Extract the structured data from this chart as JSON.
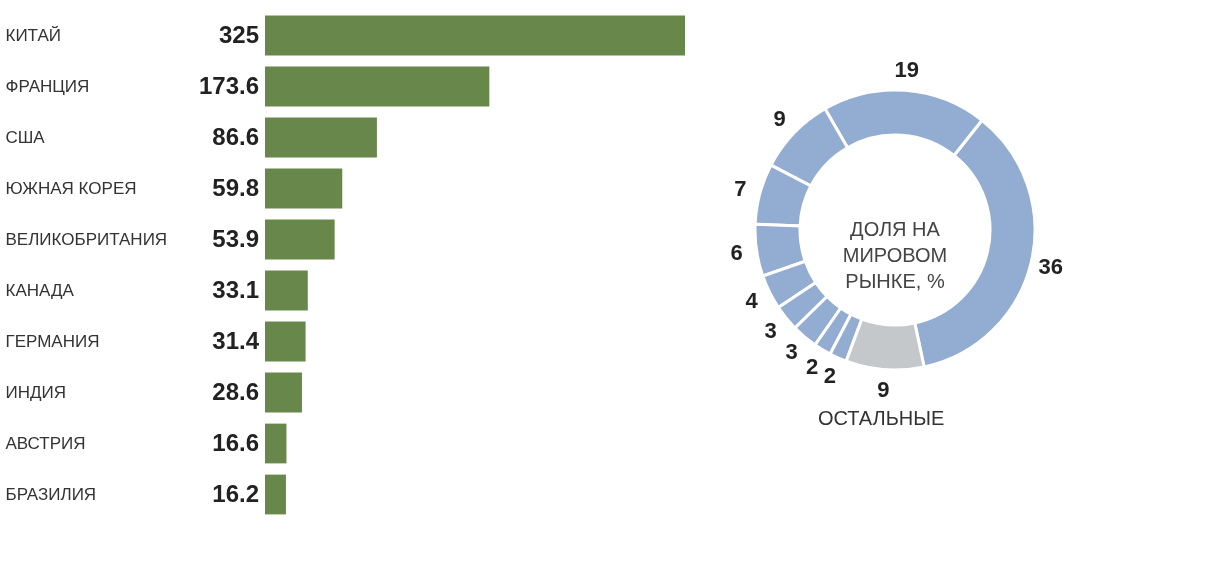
{
  "chart_data": [
    {
      "type": "bar",
      "orientation": "horizontal",
      "categories": [
        "КИТАЙ",
        "ФРАНЦИЯ",
        "США",
        "ЮЖНАЯ КОРЕЯ",
        "ВЕЛИКОБРИТАНИЯ",
        "КАНАДА",
        "ГЕРМАНИЯ",
        "ИНДИЯ",
        "АВСТРИЯ",
        "БРАЗИЛИЯ"
      ],
      "values": [
        325,
        173.6,
        86.6,
        59.8,
        53.9,
        33.1,
        31.4,
        28.6,
        16.6,
        16.2
      ],
      "color": "#68874a",
      "data_labels": true,
      "tick_labels": "y"
    },
    {
      "type": "donut",
      "title": "ДОЛЯ НА МИРОВОМ РЫНКЕ, %",
      "categories": [
        null,
        null,
        null,
        null,
        null,
        null,
        null,
        null,
        null,
        null,
        "ОСТАЛЬНЫЕ"
      ],
      "values": [
        36,
        19,
        9,
        7,
        6,
        4,
        3,
        3,
        2,
        2,
        9
      ],
      "colors": [
        "#93acd1",
        "#93acd1",
        "#93acd1",
        "#93acd1",
        "#93acd1",
        "#93acd1",
        "#93acd1",
        "#93acd1",
        "#93acd1",
        "#93acd1",
        "#c4c8cb"
      ],
      "data_labels": true
    }
  ]
}
